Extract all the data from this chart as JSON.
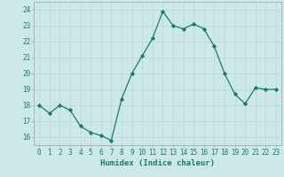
{
  "x": [
    0,
    1,
    2,
    3,
    4,
    5,
    6,
    7,
    8,
    9,
    10,
    11,
    12,
    13,
    14,
    15,
    16,
    17,
    18,
    19,
    20,
    21,
    22,
    23
  ],
  "y": [
    18.0,
    17.5,
    18.0,
    17.7,
    16.7,
    16.3,
    16.1,
    15.8,
    18.4,
    20.0,
    21.1,
    22.2,
    23.9,
    23.0,
    22.8,
    23.1,
    22.8,
    21.7,
    20.0,
    18.7,
    18.1,
    19.1,
    19.0,
    19.0
  ],
  "xlabel": "Humidex (Indice chaleur)",
  "xlim": [
    -0.5,
    23.5
  ],
  "ylim": [
    15.5,
    24.5
  ],
  "yticks": [
    16,
    17,
    18,
    19,
    20,
    21,
    22,
    23,
    24
  ],
  "xticks": [
    0,
    1,
    2,
    3,
    4,
    5,
    6,
    7,
    8,
    9,
    10,
    11,
    12,
    13,
    14,
    15,
    16,
    17,
    18,
    19,
    20,
    21,
    22,
    23
  ],
  "line_color": "#1a7a6e",
  "marker": "D",
  "marker_size": 2.2,
  "bg_color": "#cce8e8",
  "grid_color": "#b8d8d8",
  "label_color": "#1a7a6e",
  "tick_color": "#1a7a6e",
  "spine_color": "#aaaaaa",
  "font_size_axis": 6.5,
  "font_size_tick": 5.5
}
